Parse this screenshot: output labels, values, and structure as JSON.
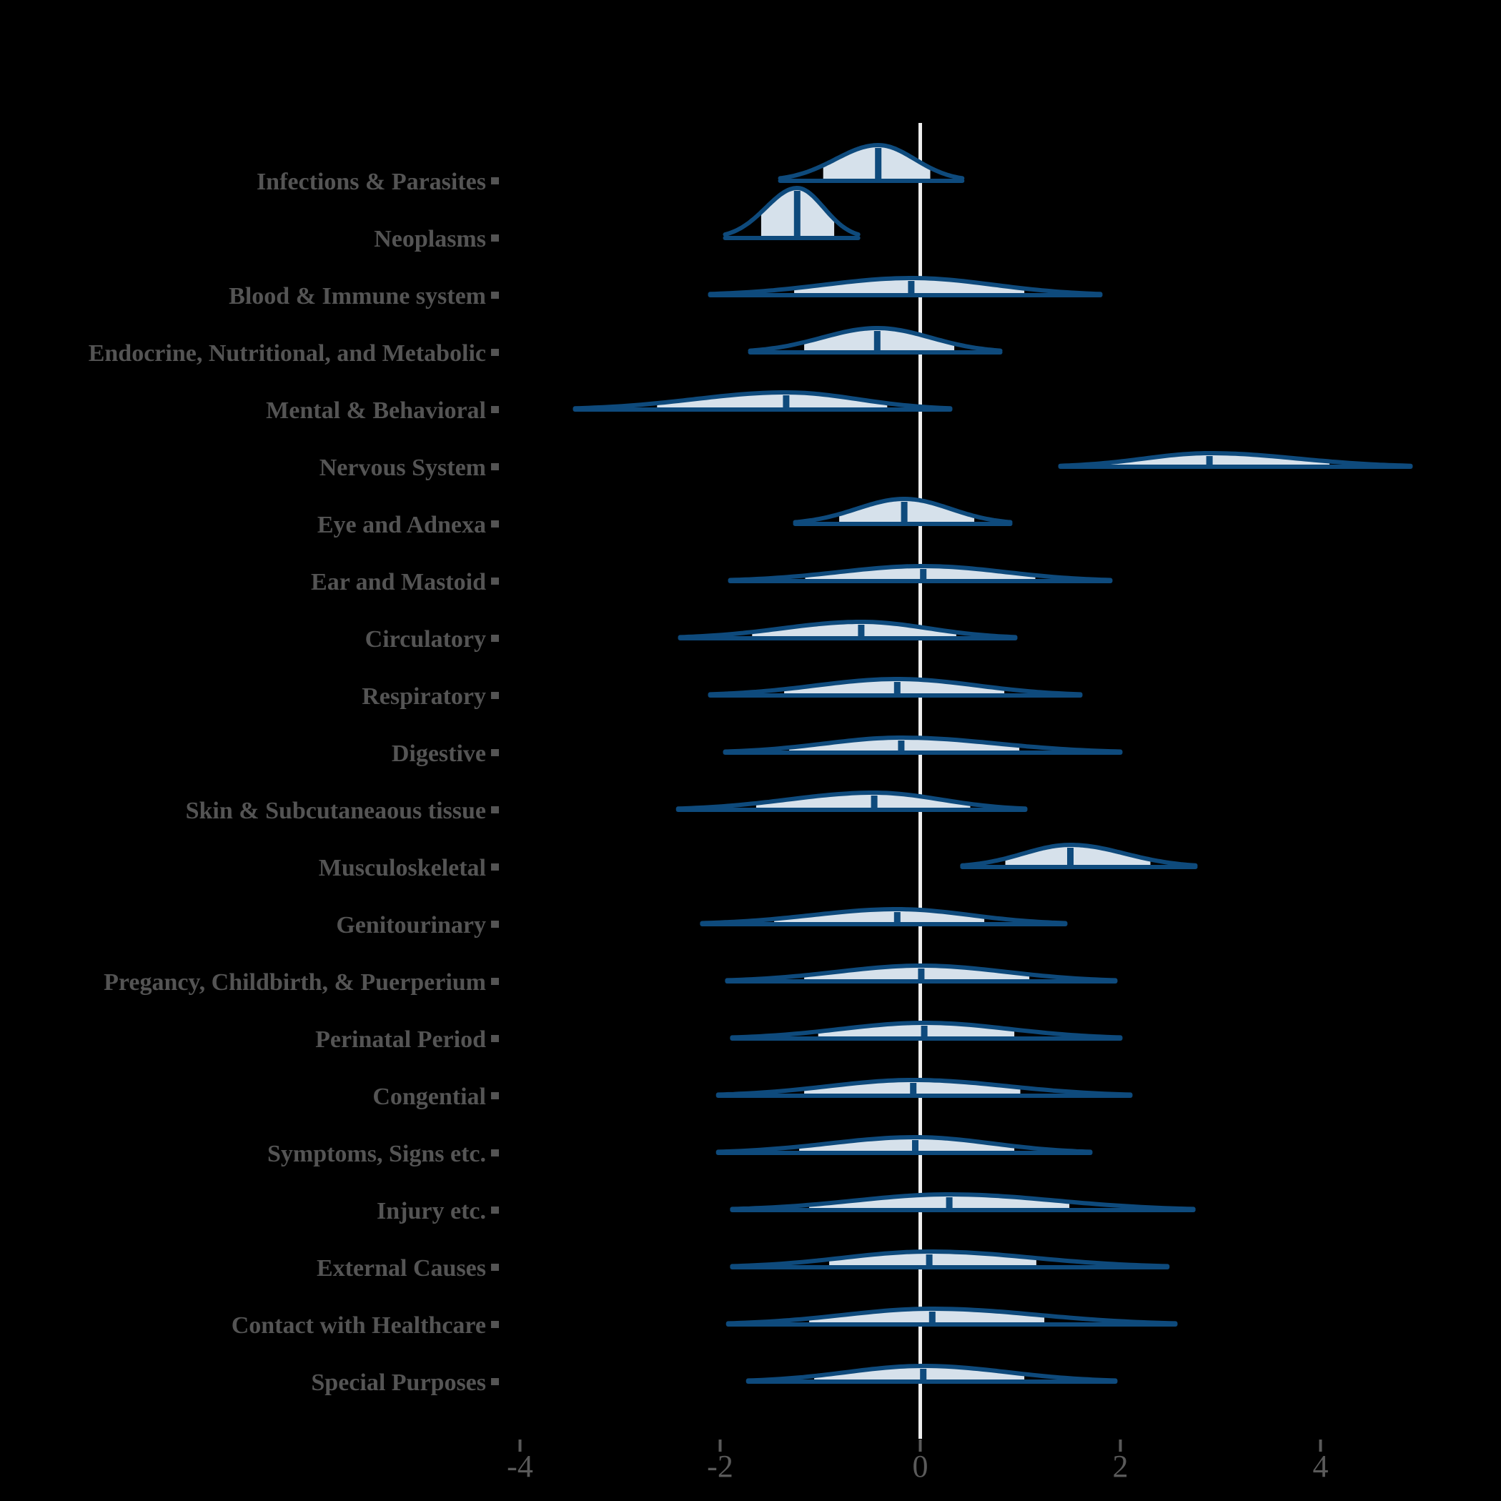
{
  "figure": {
    "background": "#000000",
    "title": ""
  },
  "style": {
    "navy": "#0e4a7c",
    "pale_fill": "#d6e1eb",
    "zero_line": "#ededed",
    "label_gray": "#545454",
    "tick_gray": "#5a5a5a"
  },
  "x_axis": {
    "tick_labels": [
      "-4",
      "-2",
      "0",
      "2",
      "4"
    ]
  },
  "chart_data": {
    "type": "ridgeline-density",
    "title": "",
    "xlabel": "",
    "ylabel": "",
    "xlim": [
      -5.1,
      5.2
    ],
    "x_ticks": [
      -4,
      -2,
      0,
      2,
      4
    ],
    "zero_reference_line": true,
    "legend": "none",
    "grid": false,
    "categories": [
      "Infections & Parasites",
      "Neoplasms",
      "Blood & Immune system",
      "Endocrine, Nutritional, and Metabolic",
      "Mental & Behavioral",
      "Nervous System",
      "Eye and Adnexa",
      "Ear and Mastoid",
      "Circulatory",
      "Respiratory",
      "Digestive",
      "Skin & Subcutaneaous tissue",
      "Musculoskeletal",
      "Genitourinary",
      "Pregancy, Childbirth, & Puerperium",
      "Perinatal Period",
      "Congential",
      "Symptoms, Signs etc.",
      "Injury etc.",
      "External Causes",
      "Contact with Healthcare",
      "Special Purposes"
    ],
    "series": [
      {
        "label": "Infections & Parasites",
        "median": -0.42,
        "range": [
          -1.4,
          0.42
        ],
        "shaded_interval": [
          -0.97,
          0.1
        ],
        "peak_height": 50
      },
      {
        "label": "Neoplasms",
        "median": -1.23,
        "range": [
          -1.95,
          -0.62
        ],
        "shaded_interval": [
          -1.59,
          -0.86
        ],
        "peak_height": 70
      },
      {
        "label": "Blood & Immune system",
        "median": -0.09,
        "range": [
          -2.1,
          1.8
        ],
        "shaded_interval": [
          -1.26,
          1.04
        ],
        "peak_height": 24
      },
      {
        "label": "Endocrine, Nutritional, and Metabolic",
        "median": -0.43,
        "range": [
          -1.7,
          0.8
        ],
        "shaded_interval": [
          -1.16,
          0.34
        ],
        "peak_height": 34
      },
      {
        "label": "Mental & Behavioral",
        "median": -1.34,
        "range": [
          -3.45,
          0.3
        ],
        "shaded_interval": [
          -2.63,
          -0.33
        ],
        "peak_height": 24
      },
      {
        "label": "Nervous System",
        "median": 2.89,
        "range": [
          1.4,
          4.9
        ],
        "shaded_interval": [
          1.82,
          4.09
        ],
        "peak_height": 19
      },
      {
        "label": "Eye and Adnexa",
        "median": -0.16,
        "range": [
          -1.25,
          0.9
        ],
        "shaded_interval": [
          -0.81,
          0.54
        ],
        "peak_height": 35
      },
      {
        "label": "Ear and Mastoid",
        "median": 0.03,
        "range": [
          -1.9,
          1.9
        ],
        "shaded_interval": [
          -1.15,
          1.15
        ],
        "peak_height": 21
      },
      {
        "label": "Circulatory",
        "median": -0.59,
        "range": [
          -2.4,
          0.95
        ],
        "shaded_interval": [
          -1.68,
          0.36
        ],
        "peak_height": 23
      },
      {
        "label": "Respiratory",
        "median": -0.23,
        "range": [
          -2.1,
          1.6
        ],
        "shaded_interval": [
          -1.36,
          0.84
        ],
        "peak_height": 23
      },
      {
        "label": "Digestive",
        "median": -0.19,
        "range": [
          -1.95,
          2.0
        ],
        "shaded_interval": [
          -1.31,
          0.99
        ],
        "peak_height": 21
      },
      {
        "label": "Skin & Subcutaneaous tissue",
        "median": -0.46,
        "range": [
          -2.42,
          1.05
        ],
        "shaded_interval": [
          -1.64,
          0.5
        ],
        "peak_height": 24
      },
      {
        "label": "Musculoskeletal",
        "median": 1.5,
        "range": [
          0.42,
          2.75
        ],
        "shaded_interval": [
          0.85,
          2.3
        ],
        "peak_height": 31
      },
      {
        "label": "Genitourinary",
        "median": -0.23,
        "range": [
          -2.18,
          1.45
        ],
        "shaded_interval": [
          -1.46,
          0.64
        ],
        "peak_height": 21
      },
      {
        "label": "Pregancy, Childbirth, & Puerperium",
        "median": 0.01,
        "range": [
          -1.93,
          1.95
        ],
        "shaded_interval": [
          -1.16,
          1.09
        ],
        "peak_height": 22
      },
      {
        "label": "Perinatal Period",
        "median": 0.04,
        "range": [
          -1.88,
          2.0
        ],
        "shaded_interval": [
          -1.02,
          0.94
        ],
        "peak_height": 22
      },
      {
        "label": "Congential",
        "median": -0.07,
        "range": [
          -2.02,
          2.1
        ],
        "shaded_interval": [
          -1.16,
          1.0
        ],
        "peak_height": 22
      },
      {
        "label": "Symptoms, Signs etc.",
        "median": -0.05,
        "range": [
          -2.02,
          1.7
        ],
        "shaded_interval": [
          -1.21,
          0.94
        ],
        "peak_height": 22
      },
      {
        "label": "Injury etc.",
        "median": 0.29,
        "range": [
          -1.88,
          2.73
        ],
        "shaded_interval": [
          -1.11,
          1.49
        ],
        "peak_height": 22
      },
      {
        "label": "External Causes",
        "median": 0.09,
        "range": [
          -1.88,
          2.47
        ],
        "shaded_interval": [
          -0.91,
          1.16
        ],
        "peak_height": 22
      },
      {
        "label": "Contact with Healthcare",
        "median": 0.12,
        "range": [
          -1.92,
          2.55
        ],
        "shaded_interval": [
          -1.11,
          1.24
        ],
        "peak_height": 22
      },
      {
        "label": "Special Purposes",
        "median": 0.03,
        "range": [
          -1.72,
          1.95
        ],
        "shaded_interval": [
          -1.06,
          1.04
        ],
        "peak_height": 22
      }
    ]
  }
}
